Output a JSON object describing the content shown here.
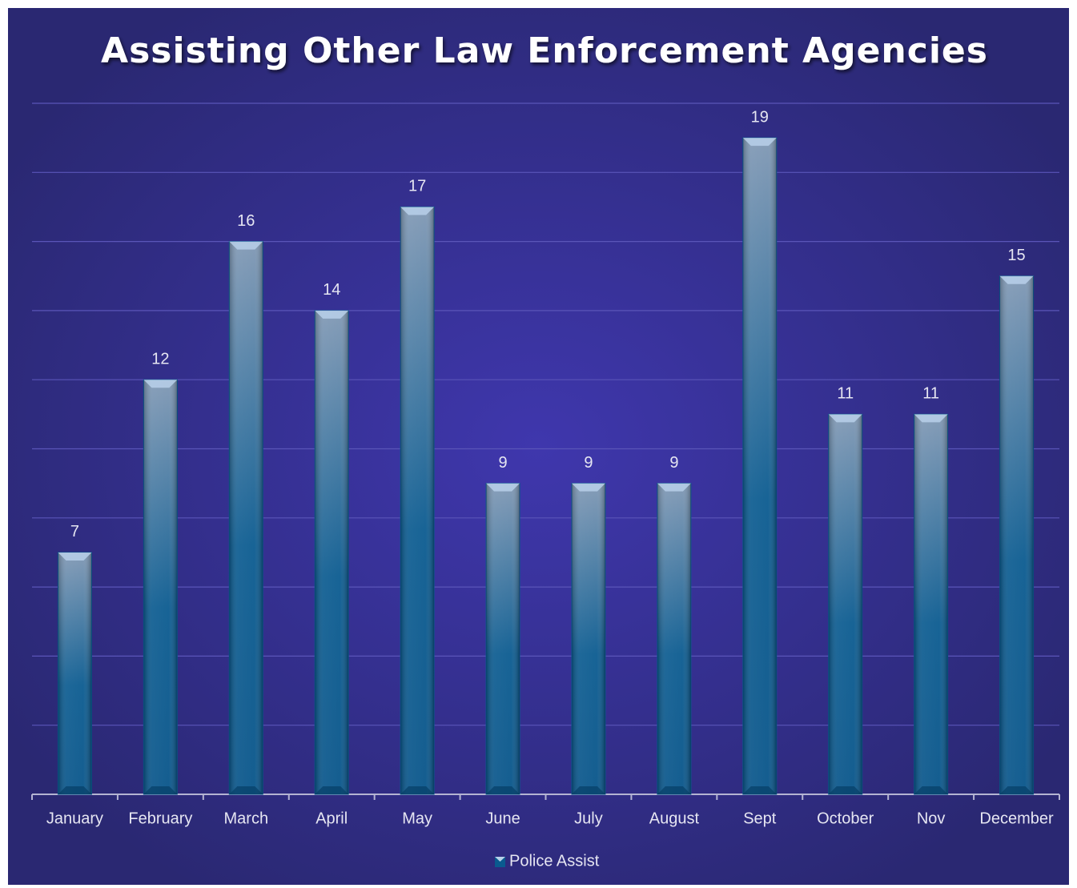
{
  "chart_data": {
    "type": "bar",
    "title": "Assisting Other Law Enforcement Agencies",
    "categories": [
      "January",
      "February",
      "March",
      "April",
      "May",
      "June",
      "July",
      "August",
      "Sept",
      "October",
      "Nov",
      "December"
    ],
    "series": [
      {
        "name": "Police Assist",
        "color": "#0a5a8f",
        "values": [
          7,
          12,
          16,
          14,
          17,
          9,
          9,
          9,
          19,
          11,
          11,
          15
        ]
      }
    ],
    "ylim": [
      0,
      20
    ],
    "yticks": [
      0,
      2,
      4,
      6,
      8,
      10,
      12,
      14,
      16,
      18,
      20
    ],
    "grid": true,
    "legend": "bottom"
  }
}
